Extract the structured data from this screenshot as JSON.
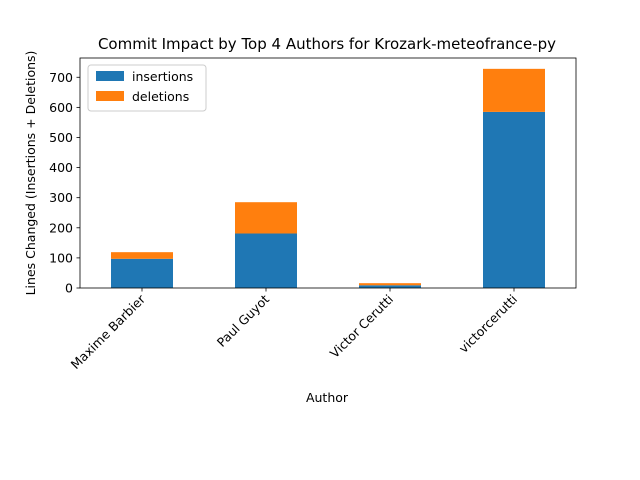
{
  "chart_data": {
    "type": "bar",
    "stacked": true,
    "title": "Commit Impact by Top 4 Authors for Krozark-meteofrance-py",
    "xlabel": "Author",
    "ylabel": "Lines Changed (Insertions + Deletions)",
    "categories": [
      "Maxime Barbier",
      "Paul Guyot",
      "Victor Cerutti",
      "victorcerutti"
    ],
    "series": [
      {
        "name": "insertions",
        "color": "#1f77b4",
        "values": [
          97,
          181,
          9,
          585
        ]
      },
      {
        "name": "deletions",
        "color": "#ff7f0e",
        "values": [
          22,
          104,
          7,
          143
        ]
      }
    ],
    "ylim": [
      0,
      764
    ],
    "yticks": [
      0,
      100,
      200,
      300,
      400,
      500,
      600,
      700
    ],
    "legend_position": "top-left",
    "grid": false
  }
}
